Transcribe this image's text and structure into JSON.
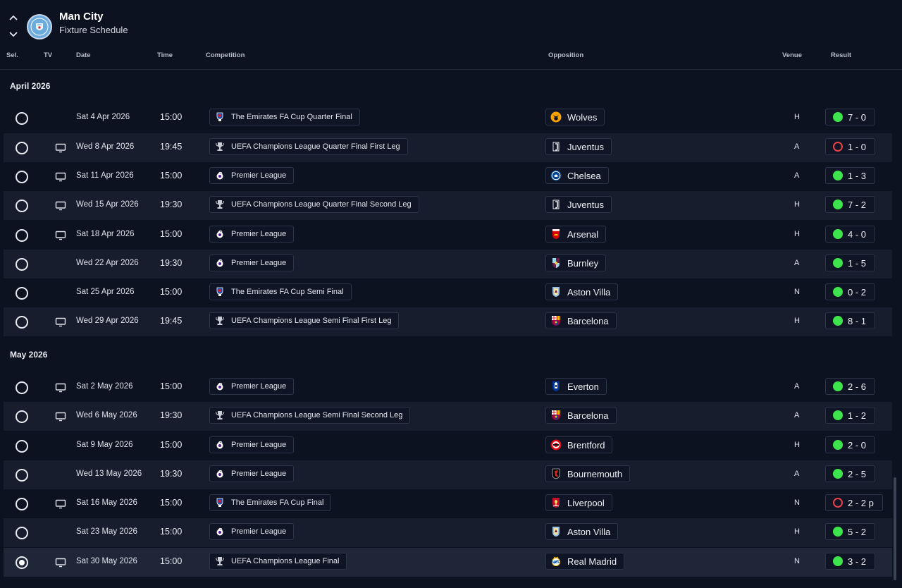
{
  "header": {
    "title": "Man City",
    "subtitle": "Fixture Schedule"
  },
  "columns": {
    "sel": "Sel.",
    "tv": "TV",
    "date": "Date",
    "time": "Time",
    "competition": "Competition",
    "opposition": "Opposition",
    "venue": "Venue",
    "result": "Result"
  },
  "months": [
    "April 2026",
    "May 2026"
  ],
  "colors": {
    "background": "#0d1221",
    "row_alt": "#171d2d",
    "win": "#3ee44c",
    "loss": "#e6434b"
  },
  "fixtures": [
    {
      "tv": false,
      "date": "Sat 4 Apr 2026",
      "time": "15:00",
      "competition": "The Emirates FA Cup Quarter Final",
      "comp_icon": "fa-cup-icon",
      "opposition": "Wolves",
      "crest": "wolves-crest-icon",
      "venue": "H",
      "outcome": "win",
      "result": "7 - 0",
      "selected": false
    },
    {
      "tv": true,
      "date": "Wed 8 Apr 2026",
      "time": "19:45",
      "competition": "UEFA Champions League Quarter Final First Leg",
      "comp_icon": "champions-league-icon",
      "opposition": "Juventus",
      "crest": "juventus-crest-icon",
      "venue": "A",
      "outcome": "loss",
      "result": "1 - 0",
      "selected": false
    },
    {
      "tv": true,
      "date": "Sat 11 Apr 2026",
      "time": "15:00",
      "competition": "Premier League",
      "comp_icon": "premier-league-icon",
      "opposition": "Chelsea",
      "crest": "chelsea-crest-icon",
      "venue": "A",
      "outcome": "win",
      "result": "1 - 3",
      "selected": false
    },
    {
      "tv": true,
      "date": "Wed 15 Apr 2026",
      "time": "19:30",
      "competition": "UEFA Champions League Quarter Final Second Leg",
      "comp_icon": "champions-league-icon",
      "opposition": "Juventus",
      "crest": "juventus-crest-icon",
      "venue": "H",
      "outcome": "win",
      "result": "7 - 2",
      "selected": false
    },
    {
      "tv": true,
      "date": "Sat 18 Apr 2026",
      "time": "15:00",
      "competition": "Premier League",
      "comp_icon": "premier-league-icon",
      "opposition": "Arsenal",
      "crest": "arsenal-crest-icon",
      "venue": "H",
      "outcome": "win",
      "result": "4 - 0",
      "selected": false
    },
    {
      "tv": false,
      "date": "Wed 22 Apr 2026",
      "time": "19:30",
      "competition": "Premier League",
      "comp_icon": "premier-league-icon",
      "opposition": "Burnley",
      "crest": "burnley-crest-icon",
      "venue": "A",
      "outcome": "win",
      "result": "1 - 5",
      "selected": false
    },
    {
      "tv": false,
      "date": "Sat 25 Apr 2026",
      "time": "15:00",
      "competition": "The Emirates FA Cup Semi Final",
      "comp_icon": "fa-cup-icon",
      "opposition": "Aston Villa",
      "crest": "aston-villa-crest-icon",
      "venue": "N",
      "outcome": "win",
      "result": "0 - 2",
      "selected": false
    },
    {
      "tv": true,
      "date": "Wed 29 Apr 2026",
      "time": "19:45",
      "competition": "UEFA Champions League Semi Final First Leg",
      "comp_icon": "champions-league-icon",
      "opposition": "Barcelona",
      "crest": "barcelona-crest-icon",
      "venue": "H",
      "outcome": "win",
      "result": "8 - 1",
      "selected": false
    },
    {
      "tv": true,
      "date": "Sat 2 May 2026",
      "time": "15:00",
      "competition": "Premier League",
      "comp_icon": "premier-league-icon",
      "opposition": "Everton",
      "crest": "everton-crest-icon",
      "venue": "A",
      "outcome": "win",
      "result": "2 - 6",
      "selected": false
    },
    {
      "tv": true,
      "date": "Wed 6 May 2026",
      "time": "19:30",
      "competition": "UEFA Champions League Semi Final Second Leg",
      "comp_icon": "champions-league-icon",
      "opposition": "Barcelona",
      "crest": "barcelona-crest-icon",
      "venue": "A",
      "outcome": "win",
      "result": "1 - 2",
      "selected": false
    },
    {
      "tv": false,
      "date": "Sat 9 May 2026",
      "time": "15:00",
      "competition": "Premier League",
      "comp_icon": "premier-league-icon",
      "opposition": "Brentford",
      "crest": "brentford-crest-icon",
      "venue": "H",
      "outcome": "win",
      "result": "2 - 0",
      "selected": false
    },
    {
      "tv": false,
      "date": "Wed 13 May 2026",
      "time": "19:30",
      "competition": "Premier League",
      "comp_icon": "premier-league-icon",
      "opposition": "Bournemouth",
      "crest": "bournemouth-crest-icon",
      "venue": "A",
      "outcome": "win",
      "result": "2 - 5",
      "selected": false
    },
    {
      "tv": true,
      "date": "Sat 16 May 2026",
      "time": "15:00",
      "competition": "The Emirates FA Cup Final",
      "comp_icon": "fa-cup-icon",
      "opposition": "Liverpool",
      "crest": "liverpool-crest-icon",
      "venue": "N",
      "outcome": "loss",
      "result": "2 - 2 p",
      "selected": false
    },
    {
      "tv": false,
      "date": "Sat 23 May 2026",
      "time": "15:00",
      "competition": "Premier League",
      "comp_icon": "premier-league-icon",
      "opposition": "Aston Villa",
      "crest": "aston-villa-crest-icon",
      "venue": "H",
      "outcome": "win",
      "result": "5 - 2",
      "selected": false
    },
    {
      "tv": true,
      "date": "Sat 30 May 2026",
      "time": "15:00",
      "competition": "UEFA Champions League Final",
      "comp_icon": "champions-league-icon",
      "opposition": "Real Madrid",
      "crest": "real-madrid-crest-icon",
      "venue": "N",
      "outcome": "win",
      "result": "3 - 2",
      "selected": true
    }
  ]
}
